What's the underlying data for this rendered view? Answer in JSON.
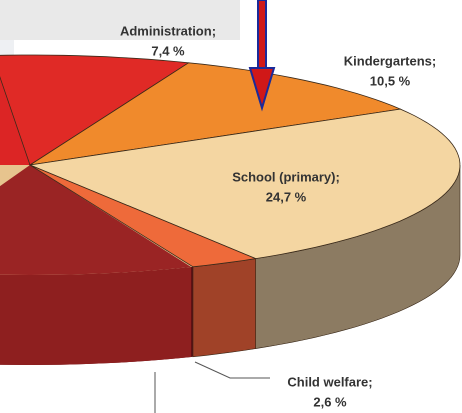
{
  "chart_data": {
    "type": "pie",
    "categories": [
      "Administration;",
      "Kindergartens;",
      "School (primary);",
      "Child welfare;"
    ],
    "values": [
      7.4,
      10.5,
      24.7,
      2.6
    ],
    "value_labels": [
      "7,4 %",
      "10,5 %",
      "24,7 %",
      "2,6 %"
    ],
    "colors": [
      "#e02a26",
      "#f08a2c",
      "#f4d6a2",
      "#ee6a3a"
    ]
  }
}
